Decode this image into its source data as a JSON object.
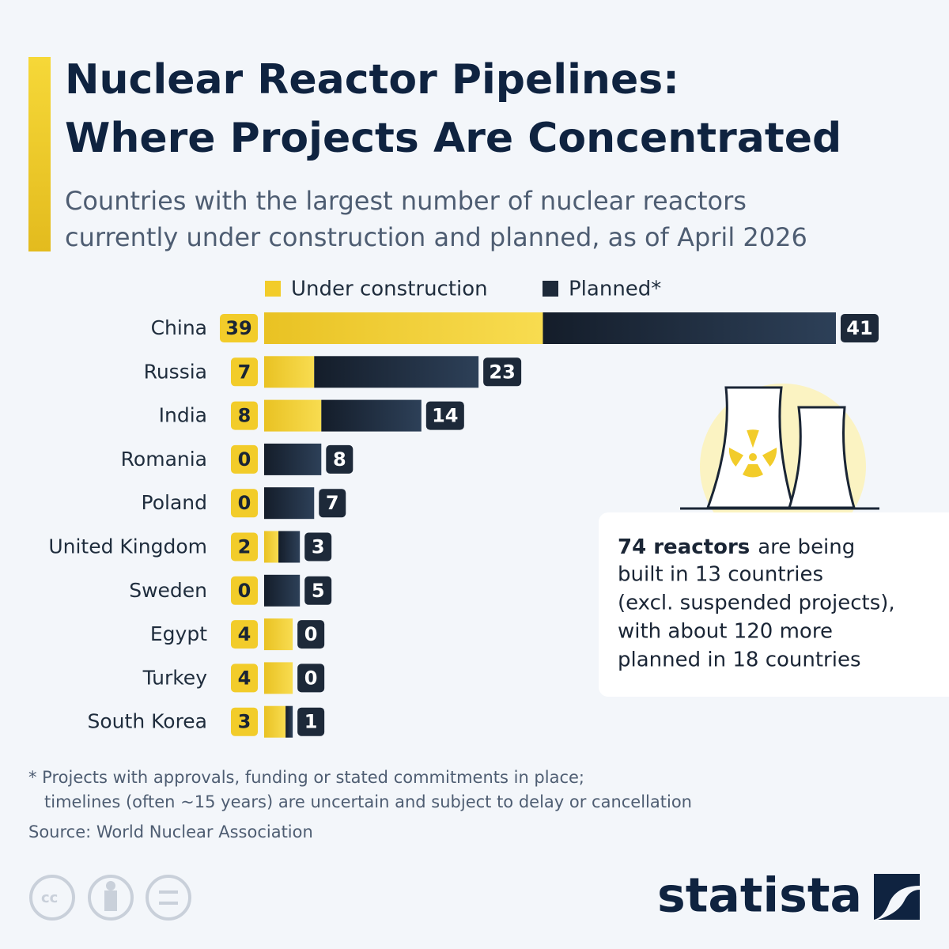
{
  "chart_data": {
    "type": "stacked-bar",
    "title_lines": [
      "Nuclear Reactor Pipelines:",
      "Where Projects Are Concentrated"
    ],
    "subtitle_lines": [
      "Countries with the largest number of nuclear reactors",
      "currently under construction and planned, as of April 2026"
    ],
    "categories": [
      "China",
      "Russia",
      "India",
      "Romania",
      "Poland",
      "United Kingdom",
      "Sweden",
      "Egypt",
      "Turkey",
      "South Korea"
    ],
    "series": [
      {
        "name": "Under construction",
        "color": "#f2cc2a",
        "values": [
          39,
          7,
          8,
          0,
          0,
          2,
          0,
          4,
          4,
          3
        ]
      },
      {
        "name": "Planned*",
        "color": "#1d2939",
        "values": [
          41,
          23,
          14,
          8,
          7,
          3,
          5,
          0,
          0,
          1
        ]
      }
    ],
    "annotation": {
      "highlight": "74 reactors",
      "lines": [
        "are being",
        "built in 13 countries",
        "(excl. suspended projects),",
        "with about 120 more",
        "planned in 18 countries"
      ]
    },
    "footnote_lines": [
      "* Projects with approvals, funding or stated commitments in place;",
      "timelines (often ~15 years) are uncertain and subject to delay or cancellation"
    ],
    "source": "Source: World Nuclear Association",
    "brand": "statista"
  }
}
